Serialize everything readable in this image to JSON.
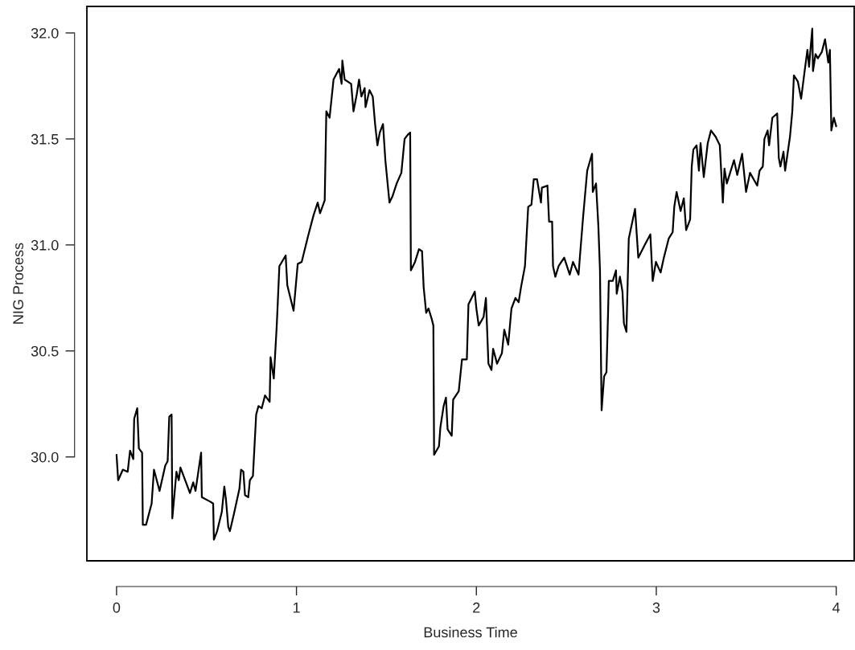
{
  "chart_data": {
    "type": "line",
    "xlabel": "Business Time",
    "ylabel": "NIG Process",
    "color": "#000000",
    "line_style": "solid",
    "marker": "none",
    "grid": false,
    "legend": false,
    "xlim": [
      -0.165,
      4.1
    ],
    "ylim": [
      29.51,
      32.125
    ],
    "xticks": [
      0,
      1,
      2,
      3,
      4
    ],
    "yticks": [
      {
        "value": 30,
        "label": "30.0"
      },
      {
        "value": 30.5,
        "label": "30.5"
      },
      {
        "value": 31,
        "label": "31.0"
      },
      {
        "value": 31.5,
        "label": "31.5"
      },
      {
        "value": 32,
        "label": "32.0"
      }
    ],
    "x": [
      0,
      0.009,
      0.035,
      0.062,
      0.075,
      0.093,
      0.098,
      0.115,
      0.124,
      0.142,
      0.146,
      0.164,
      0.195,
      0.208,
      0.239,
      0.271,
      0.284,
      0.293,
      0.306,
      0.31,
      0.333,
      0.346,
      0.355,
      0.386,
      0.408,
      0.426,
      0.439,
      0.47,
      0.474,
      0.519,
      0.537,
      0.541,
      0.559,
      0.585,
      0.599,
      0.608,
      0.621,
      0.63,
      0.652,
      0.683,
      0.692,
      0.705,
      0.714,
      0.732,
      0.741,
      0.758,
      0.776,
      0.789,
      0.807,
      0.825,
      0.851,
      0.856,
      0.874,
      0.891,
      0.905,
      0.94,
      0.949,
      0.984,
      1.007,
      1.029,
      1.064,
      1.095,
      1.118,
      1.131,
      1.157,
      1.166,
      1.184,
      1.206,
      1.237,
      1.251,
      1.255,
      1.268,
      1.304,
      1.317,
      1.335,
      1.348,
      1.361,
      1.379,
      1.384,
      1.406,
      1.424,
      1.437,
      1.45,
      1.463,
      1.481,
      1.494,
      1.517,
      1.534,
      1.557,
      1.583,
      1.601,
      1.619,
      1.632,
      1.636,
      1.659,
      1.681,
      1.698,
      1.707,
      1.721,
      1.734,
      1.752,
      1.761,
      1.765,
      1.792,
      1.8,
      1.818,
      1.831,
      1.84,
      1.863,
      1.871,
      1.902,
      1.92,
      1.947,
      1.956,
      1.991,
      2.0,
      2.013,
      2.04,
      2.053,
      2.067,
      2.084,
      2.093,
      2.115,
      2.142,
      2.155,
      2.177,
      2.195,
      2.217,
      2.235,
      2.248,
      2.27,
      2.288,
      2.306,
      2.319,
      2.337,
      2.359,
      2.364,
      2.395,
      2.404,
      2.421,
      2.426,
      2.439,
      2.457,
      2.488,
      2.519,
      2.537,
      2.568,
      2.576,
      2.594,
      2.616,
      2.643,
      2.647,
      2.665,
      2.678,
      2.687,
      2.696,
      2.71,
      2.723,
      2.732,
      2.736,
      2.758,
      2.776,
      2.78,
      2.798,
      2.812,
      2.82,
      2.834,
      2.847,
      2.882,
      2.9,
      2.936,
      2.967,
      2.98,
      2.998,
      3.024,
      3.042,
      3.069,
      3.091,
      3.1,
      3.113,
      3.135,
      3.153,
      3.166,
      3.188,
      3.197,
      3.206,
      3.224,
      3.237,
      3.246,
      3.264,
      3.286,
      3.304,
      3.33,
      3.353,
      3.37,
      3.379,
      3.392,
      3.432,
      3.45,
      3.477,
      3.499,
      3.521,
      3.561,
      3.574,
      3.592,
      3.601,
      3.619,
      3.627,
      3.645,
      3.672,
      3.681,
      3.69,
      3.707,
      3.716,
      3.743,
      3.756,
      3.765,
      3.787,
      3.805,
      3.823,
      3.84,
      3.849,
      3.858,
      3.867,
      3.871,
      3.885,
      3.898,
      3.92,
      3.938,
      3.956,
      3.965,
      3.973,
      3.987,
      4.0
    ],
    "values": [
      30.01,
      29.89,
      29.94,
      29.93,
      30.03,
      29.99,
      30.18,
      30.23,
      30.04,
      30.02,
      29.68,
      29.68,
      29.78,
      29.94,
      29.84,
      29.96,
      29.98,
      30.19,
      30.2,
      29.71,
      29.93,
      29.89,
      29.95,
      29.88,
      29.83,
      29.88,
      29.84,
      30.02,
      29.81,
      29.79,
      29.78,
      29.61,
      29.65,
      29.74,
      29.86,
      29.8,
      29.67,
      29.65,
      29.73,
      29.85,
      29.94,
      29.93,
      29.82,
      29.81,
      29.89,
      29.91,
      30.2,
      30.24,
      30.23,
      30.29,
      30.26,
      30.47,
      30.37,
      30.63,
      30.9,
      30.95,
      30.81,
      30.69,
      30.91,
      30.92,
      31.04,
      31.14,
      31.2,
      31.15,
      31.21,
      31.63,
      31.6,
      31.78,
      31.83,
      31.76,
      31.87,
      31.78,
      31.76,
      31.63,
      31.71,
      31.78,
      31.7,
      31.74,
      31.65,
      31.73,
      31.7,
      31.57,
      31.47,
      31.53,
      31.57,
      31.4,
      31.2,
      31.23,
      31.29,
      31.34,
      31.5,
      31.52,
      31.53,
      30.88,
      30.92,
      30.98,
      30.97,
      30.8,
      30.68,
      30.7,
      30.65,
      30.62,
      30.01,
      30.05,
      30.14,
      30.24,
      30.28,
      30.13,
      30.1,
      30.27,
      30.31,
      30.46,
      30.46,
      30.72,
      30.78,
      30.7,
      30.62,
      30.66,
      30.75,
      30.44,
      30.41,
      30.51,
      30.44,
      30.49,
      30.6,
      30.53,
      30.7,
      30.75,
      30.73,
      30.8,
      30.9,
      31.18,
      31.19,
      31.31,
      31.31,
      31.2,
      31.27,
      31.28,
      31.11,
      31.11,
      30.9,
      30.85,
      30.9,
      30.94,
      30.86,
      30.92,
      30.86,
      30.95,
      31.14,
      31.35,
      31.43,
      31.25,
      31.29,
      31.09,
      30.88,
      30.22,
      30.38,
      30.4,
      30.68,
      30.83,
      30.83,
      30.88,
      30.77,
      30.85,
      30.78,
      30.63,
      30.59,
      31.03,
      31.17,
      30.94,
      31.0,
      31.05,
      30.83,
      30.92,
      30.87,
      30.94,
      31.03,
      31.06,
      31.18,
      31.25,
      31.16,
      31.22,
      31.07,
      31.12,
      31.37,
      31.45,
      31.47,
      31.35,
      31.48,
      31.32,
      31.48,
      31.54,
      31.51,
      31.47,
      31.2,
      31.36,
      31.29,
      31.4,
      31.33,
      31.43,
      31.25,
      31.34,
      31.28,
      31.35,
      31.37,
      31.5,
      31.54,
      31.47,
      31.6,
      31.62,
      31.41,
      31.37,
      31.44,
      31.35,
      31.51,
      31.63,
      31.8,
      31.77,
      31.69,
      31.81,
      31.92,
      31.84,
      31.93,
      32.02,
      31.82,
      31.9,
      31.88,
      31.91,
      31.97,
      31.86,
      31.92,
      31.54,
      31.6,
      31.56
    ]
  }
}
